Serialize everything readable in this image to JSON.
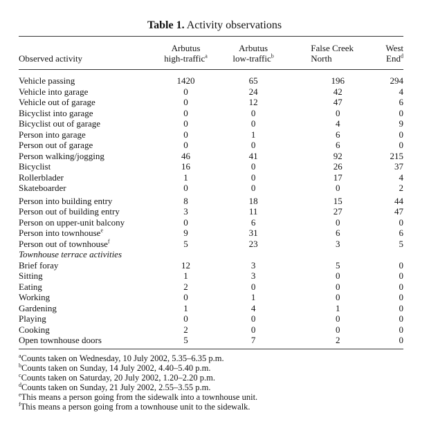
{
  "table_label": "Table 1.",
  "title": "Activity observations",
  "columns": [
    {
      "lines": [
        "Observed activity"
      ]
    },
    {
      "lines": [
        "Arbutus",
        "high-traffic"
      ],
      "note": "a"
    },
    {
      "lines": [
        "Arbutus",
        "low-traffic"
      ],
      "note": "b"
    },
    {
      "lines": [
        "False Creek",
        "North"
      ]
    },
    {
      "lines": [
        "West",
        "End"
      ],
      "note": "d"
    }
  ],
  "rows": [
    {
      "label": "Vehicle passing",
      "values": [
        1420,
        65,
        196,
        294
      ]
    },
    {
      "label": "Vehicle into garage",
      "values": [
        0,
        24,
        42,
        4
      ]
    },
    {
      "label": "Vehicle out of garage",
      "values": [
        0,
        12,
        47,
        6
      ]
    },
    {
      "label": "Bicyclist into garage",
      "values": [
        0,
        0,
        0,
        0
      ]
    },
    {
      "label": "Bicyclist out of garage",
      "values": [
        0,
        0,
        4,
        9
      ]
    },
    {
      "label": "Person into garage",
      "values": [
        0,
        1,
        6,
        0
      ]
    },
    {
      "label": "Person out of garage",
      "values": [
        0,
        0,
        6,
        0
      ]
    },
    {
      "label": "Person walking/jogging",
      "values": [
        46,
        41,
        92,
        215
      ]
    },
    {
      "label": "Bicyclist",
      "values": [
        16,
        0,
        26,
        37
      ]
    },
    {
      "label": "Rollerblader",
      "values": [
        1,
        0,
        17,
        4
      ]
    },
    {
      "label": "Skateboarder",
      "values": [
        0,
        0,
        0,
        2
      ]
    },
    {
      "label": "Person into building entry",
      "values": [
        8,
        18,
        15,
        44
      ]
    },
    {
      "label": "Person out of building entry",
      "values": [
        3,
        11,
        27,
        47
      ]
    },
    {
      "label": "Person on upper-unit balcony",
      "values": [
        0,
        6,
        0,
        0
      ]
    },
    {
      "label": "Person into townhouse",
      "note": "e",
      "values": [
        9,
        31,
        6,
        6
      ]
    },
    {
      "label": "Person out of townhouse",
      "note": "f",
      "values": [
        5,
        23,
        3,
        5
      ]
    },
    {
      "section": "Townhouse terrace activities"
    },
    {
      "label": "Brief foray",
      "values": [
        12,
        3,
        5,
        0
      ]
    },
    {
      "label": "Sitting",
      "values": [
        1,
        3,
        0,
        0
      ]
    },
    {
      "label": "Eating",
      "values": [
        2,
        0,
        0,
        0
      ]
    },
    {
      "label": "Working",
      "values": [
        0,
        1,
        0,
        0
      ]
    },
    {
      "label": "Gardening",
      "values": [
        1,
        4,
        1,
        0
      ]
    },
    {
      "label": "Playing",
      "values": [
        0,
        0,
        0,
        0
      ]
    },
    {
      "label": "Cooking",
      "values": [
        2,
        0,
        0,
        0
      ]
    },
    {
      "label": "Open townhouse doors",
      "values": [
        5,
        7,
        2,
        0
      ]
    }
  ],
  "footnotes": [
    {
      "marker": "a",
      "text": "Counts taken on Wednesday, 10 July 2002, 5.35–6.35 p.m."
    },
    {
      "marker": "b",
      "text": "Counts taken on Sunday, 14 July 2002, 4.40–5.40 p.m."
    },
    {
      "marker": "c",
      "text": "Counts taken on Saturday, 20 July 2002, 1.20–2.20 p.m."
    },
    {
      "marker": "d",
      "text": "Counts taken on Sunday, 21 July 2002, 2.55–3.55 p.m."
    },
    {
      "marker": "e",
      "text": "This means a person going from the sidewalk into a townhouse unit."
    },
    {
      "marker": "f",
      "text": "This means a person going from a townhouse unit to the sidewalk."
    }
  ]
}
